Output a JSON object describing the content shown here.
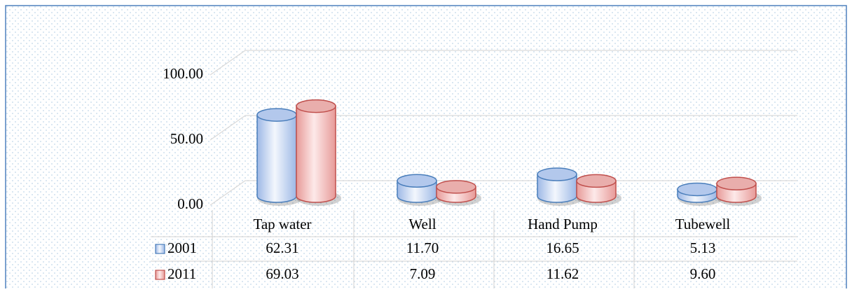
{
  "chart_data": {
    "type": "bar",
    "categories": [
      "Tap water",
      "Well",
      "Hand Pump",
      "Tubewell"
    ],
    "series": [
      {
        "name": "2001",
        "color": "#4a7ebb",
        "values": [
          62.31,
          11.7,
          16.65,
          5.13
        ],
        "value_labels": [
          "62.31",
          "11.70",
          "16.65",
          "5.13"
        ]
      },
      {
        "name": "2011",
        "color": "#c0504d",
        "values": [
          69.03,
          7.09,
          11.62,
          9.6
        ],
        "value_labels": [
          "69.03",
          "7.09",
          "11.62",
          "9.60"
        ]
      }
    ],
    "ylim": [
      0,
      100
    ],
    "yticks": [
      {
        "value": 0,
        "label": "0.00"
      },
      {
        "value": 50,
        "label": "50.00"
      },
      {
        "value": 100,
        "label": "100.00"
      }
    ],
    "grid": true
  }
}
